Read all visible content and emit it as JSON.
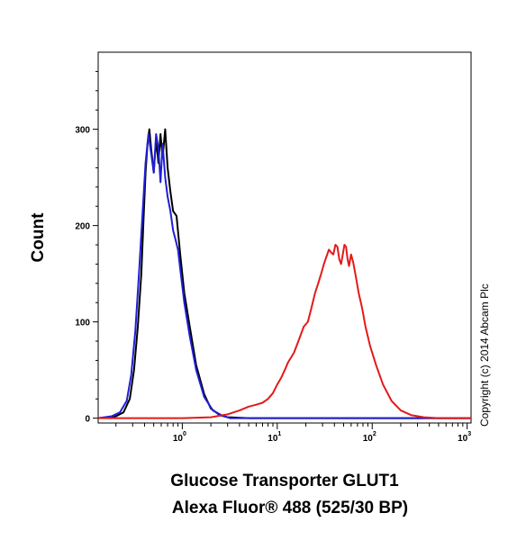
{
  "chart_data": {
    "type": "line",
    "ylabel": "Count",
    "xlabel_lines": [
      "Glucose Transporter GLUT1",
      "Alexa Fluor® 488 (525/30 BP)"
    ],
    "copyright": "Copyright (c) 2014 Abcam Plc",
    "x_scale": "log",
    "xlim": [
      0.13,
      1100
    ],
    "ylim": [
      -5,
      380
    ],
    "y_ticks": [
      0,
      100,
      200,
      300
    ],
    "x_ticks": [
      {
        "value": 1,
        "base": "10",
        "exp": "0"
      },
      {
        "value": 10,
        "base": "10",
        "exp": "1"
      },
      {
        "value": 100,
        "base": "10",
        "exp": "2"
      },
      {
        "value": 1000,
        "base": "10",
        "exp": "3"
      }
    ],
    "grid": false,
    "series": [
      {
        "color": "#000000",
        "x": [
          0.13,
          0.2,
          0.24,
          0.28,
          0.31,
          0.34,
          0.37,
          0.39,
          0.41,
          0.43,
          0.45,
          0.47,
          0.5,
          0.53,
          0.56,
          0.59,
          0.62,
          0.66,
          0.7,
          0.75,
          0.8,
          0.87,
          0.95,
          1.05,
          1.2,
          1.4,
          1.7,
          2.0,
          2.5,
          3.0,
          5,
          10,
          100,
          1100
        ],
        "y": [
          0,
          2,
          6,
          20,
          50,
          95,
          150,
          205,
          255,
          285,
          300,
          280,
          255,
          290,
          265,
          295,
          270,
          300,
          260,
          235,
          215,
          210,
          170,
          130,
          95,
          55,
          25,
          10,
          3,
          1,
          0,
          0,
          0,
          0
        ]
      },
      {
        "color": "#1f1fd6",
        "x": [
          0.13,
          0.18,
          0.22,
          0.26,
          0.29,
          0.32,
          0.35,
          0.38,
          0.41,
          0.44,
          0.47,
          0.5,
          0.53,
          0.56,
          0.59,
          0.62,
          0.66,
          0.7,
          0.75,
          0.8,
          0.85,
          0.9,
          0.95,
          1.05,
          1.2,
          1.4,
          1.7,
          2.1,
          2.6,
          3.2,
          5,
          10,
          100,
          1100
        ],
        "y": [
          0,
          2,
          6,
          18,
          45,
          90,
          150,
          210,
          265,
          295,
          275,
          255,
          295,
          280,
          245,
          285,
          250,
          230,
          215,
          195,
          185,
          175,
          155,
          120,
          85,
          50,
          22,
          8,
          3,
          0,
          0,
          0,
          0,
          0
        ]
      },
      {
        "color": "#e31a1a",
        "x": [
          0.13,
          1,
          2,
          3,
          4,
          5,
          6,
          7,
          8,
          9,
          10,
          11,
          12,
          13,
          15,
          17,
          19,
          21,
          23,
          25,
          27,
          29,
          31,
          33,
          35,
          37,
          39,
          41,
          43,
          45,
          47,
          49,
          51,
          53,
          55,
          57,
          60,
          63,
          67,
          72,
          78,
          85,
          95,
          110,
          130,
          160,
          200,
          260,
          350,
          500,
          1100
        ],
        "y": [
          0,
          0,
          1,
          4,
          8,
          12,
          14,
          16,
          20,
          26,
          35,
          42,
          50,
          58,
          68,
          82,
          95,
          100,
          115,
          130,
          140,
          150,
          160,
          168,
          175,
          172,
          170,
          180,
          178,
          165,
          160,
          170,
          180,
          178,
          165,
          158,
          170,
          162,
          148,
          130,
          115,
          95,
          75,
          55,
          35,
          18,
          8,
          3,
          1,
          0,
          0
        ]
      }
    ]
  }
}
